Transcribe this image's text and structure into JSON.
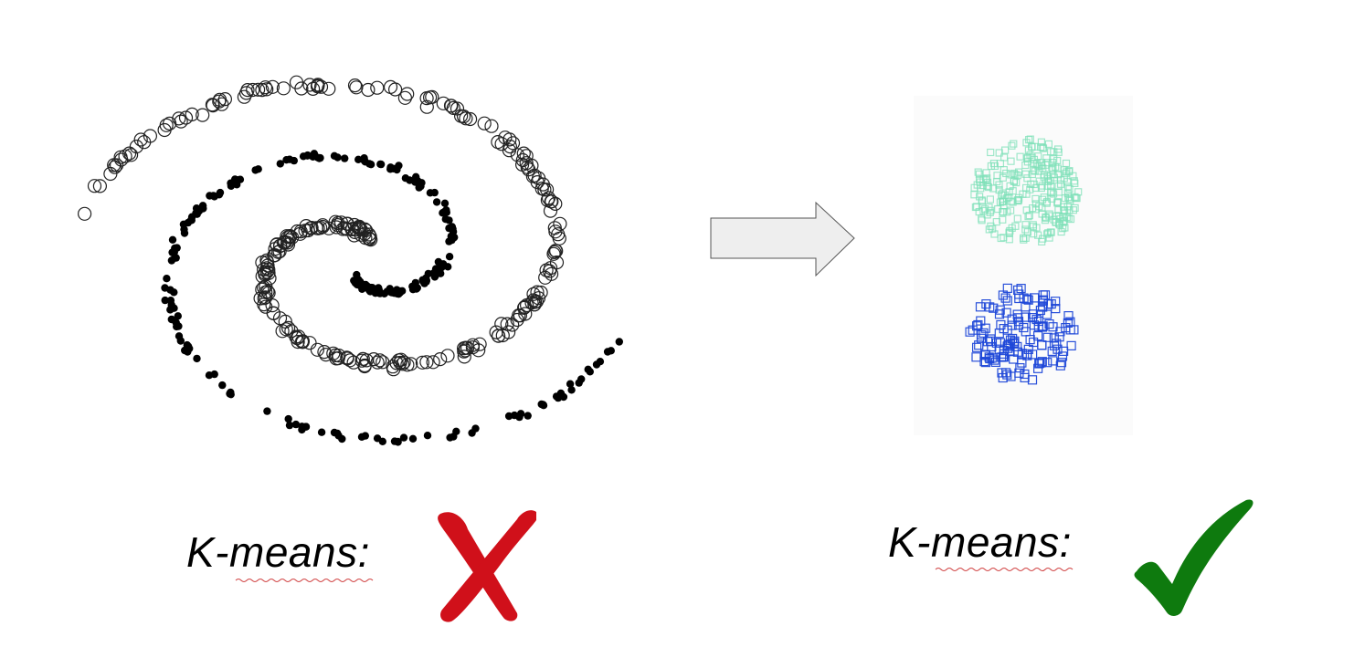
{
  "left_panel": {
    "label": "K-means:",
    "verdict_icon": "red-cross-mark-icon",
    "verdict_color": "#d0101a",
    "point_styles": {
      "outer_spirals": "hollow-circle",
      "inner_spiral": "filled-dot"
    }
  },
  "right_panel": {
    "label": "K-means:",
    "verdict_icon": "green-check-mark-icon",
    "verdict_color": "#0e7a0e",
    "clusters": [
      {
        "marker": "square",
        "color": "#7fe0b8"
      },
      {
        "marker": "square",
        "color": "#1f48d8"
      }
    ]
  },
  "arrow": {
    "icon": "right-arrow-icon",
    "fill": "#eeeeee",
    "stroke": "#555555"
  }
}
